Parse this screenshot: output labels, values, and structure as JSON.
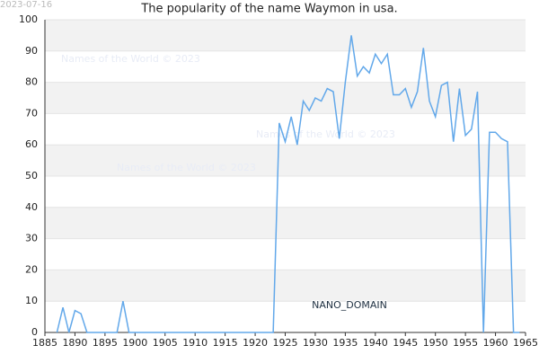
{
  "chart_data": {
    "type": "line",
    "title": "The popularity of the name Waymon in usa.",
    "date_stamp": "2023-07-16",
    "watermarks": [
      "Names of the World © 2023",
      "Names of the World © 2023",
      "Names of the World © 2023"
    ],
    "domain_label": "NANO_DOMAIN",
    "x": [
      1887,
      1888,
      1889,
      1890,
      1891,
      1892,
      1893,
      1894,
      1895,
      1896,
      1897,
      1898,
      1899,
      1900,
      1901,
      1902,
      1903,
      1904,
      1905,
      1906,
      1907,
      1908,
      1909,
      1910,
      1911,
      1912,
      1913,
      1914,
      1915,
      1916,
      1917,
      1918,
      1919,
      1920,
      1921,
      1922,
      1923,
      1924,
      1925,
      1926,
      1927,
      1928,
      1929,
      1930,
      1931,
      1932,
      1933,
      1934,
      1935,
      1936,
      1937,
      1938,
      1939,
      1940,
      1941,
      1942,
      1943,
      1944,
      1945,
      1946,
      1947,
      1948,
      1949,
      1950,
      1951,
      1952,
      1953,
      1954,
      1955,
      1956,
      1957,
      1958,
      1959,
      1960,
      1961,
      1962,
      1963,
      1964
    ],
    "series": [
      {
        "color": "#62a8ea",
        "values": [
          0,
          8,
          0,
          7,
          6,
          0,
          0,
          0,
          0,
          0,
          0,
          10,
          0,
          0,
          0,
          0,
          0,
          0,
          0,
          0,
          0,
          0,
          0,
          0,
          0,
          0,
          0,
          0,
          0,
          0,
          0,
          0,
          0,
          0,
          0,
          0,
          0,
          67,
          61,
          69,
          60,
          74,
          71,
          75,
          74,
          78,
          77,
          62,
          80,
          95,
          82,
          85,
          83,
          89,
          86,
          89,
          76,
          76,
          78,
          72,
          77,
          91,
          74,
          69,
          79,
          80,
          61,
          78,
          63,
          65,
          77,
          0,
          64,
          64,
          62,
          61,
          0,
          0
        ]
      }
    ],
    "xlim": [
      1885,
      1965
    ],
    "xticks": [
      1885,
      1890,
      1895,
      1900,
      1905,
      1910,
      1915,
      1920,
      1925,
      1930,
      1935,
      1940,
      1945,
      1950,
      1955,
      1960,
      1965
    ],
    "ylim": [
      0,
      100
    ],
    "yticks": [
      0,
      10,
      20,
      30,
      40,
      50,
      60,
      70,
      80,
      90,
      100
    ],
    "grid": true
  }
}
